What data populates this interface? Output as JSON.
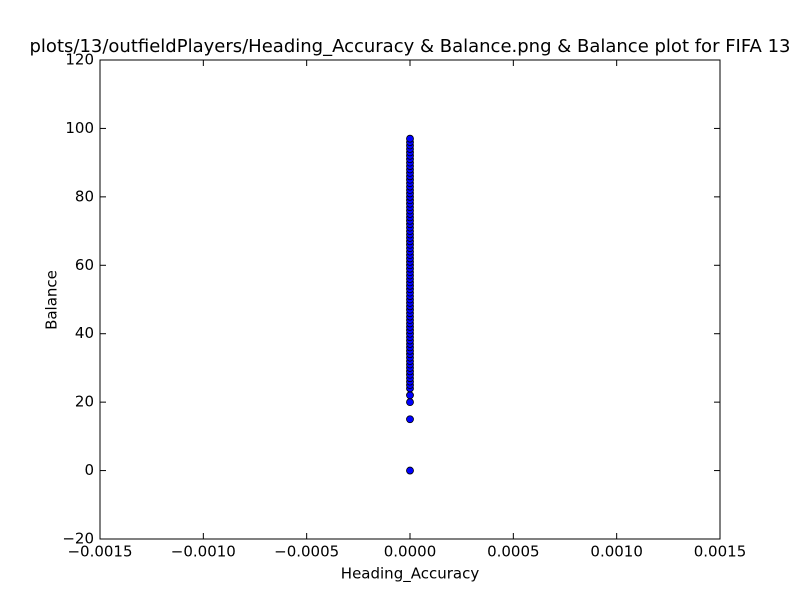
{
  "chart_data": {
    "type": "scatter",
    "title": "plots/13/outfieldPlayers/Heading_Accuracy & Balance.png & Balance plot for FIFA 13",
    "x_label": "Heading_Accuracy",
    "y_label": "Balance",
    "color": "#0000ff",
    "x": [
      0,
      0,
      0,
      0,
      0,
      0,
      0,
      0,
      0,
      0,
      0,
      0,
      0,
      0,
      0,
      0,
      0,
      0,
      0,
      0,
      0,
      0,
      0,
      0,
      0,
      0,
      0,
      0,
      0,
      0,
      0,
      0,
      0,
      0,
      0,
      0,
      0,
      0,
      0,
      0,
      0,
      0,
      0,
      0,
      0,
      0,
      0,
      0,
      0,
      0,
      0,
      0,
      0,
      0,
      0,
      0,
      0,
      0,
      0,
      0,
      0,
      0,
      0,
      0,
      0,
      0,
      0,
      0,
      0,
      0,
      0,
      0,
      0,
      0,
      0,
      0,
      0,
      0
    ],
    "y": [
      0,
      15,
      20,
      22,
      24,
      25,
      26,
      27,
      28,
      29,
      30,
      31,
      32,
      33,
      34,
      35,
      36,
      37,
      38,
      39,
      40,
      41,
      42,
      43,
      44,
      45,
      46,
      47,
      48,
      49,
      50,
      51,
      52,
      53,
      54,
      55,
      56,
      57,
      58,
      59,
      60,
      61,
      62,
      63,
      64,
      65,
      66,
      67,
      68,
      69,
      70,
      71,
      72,
      73,
      74,
      75,
      76,
      77,
      78,
      79,
      80,
      81,
      82,
      83,
      84,
      85,
      86,
      87,
      88,
      89,
      90,
      91,
      92,
      93,
      94,
      95,
      96,
      97
    ],
    "xlim": [
      -0.0015,
      0.0015
    ],
    "xticks": [
      {
        "value": -0.0015,
        "label": "−0.0015"
      },
      {
        "value": -0.001,
        "label": "−0.0010"
      },
      {
        "value": -0.0005,
        "label": "−0.0005"
      },
      {
        "value": 0,
        "label": "0.0000"
      },
      {
        "value": 0.0005,
        "label": "0.0005"
      },
      {
        "value": 0.001,
        "label": "0.0010"
      },
      {
        "value": 0.0015,
        "label": "0.0015"
      }
    ],
    "ylim": [
      -20,
      120
    ],
    "yticks": [
      {
        "value": -20,
        "label": "−20"
      },
      0,
      20,
      40,
      60,
      80,
      100,
      120
    ]
  }
}
